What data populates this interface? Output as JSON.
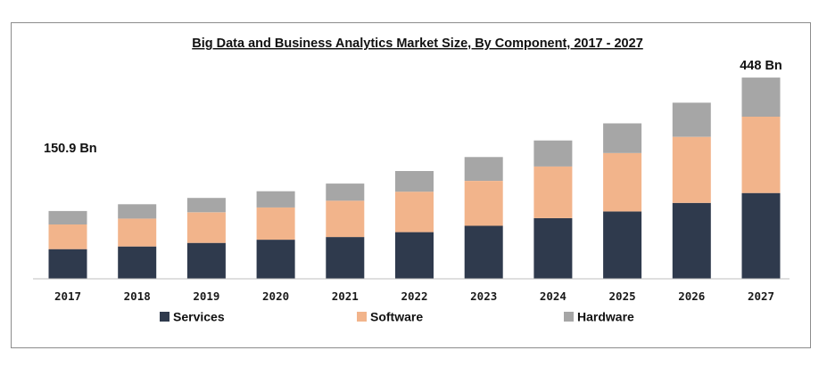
{
  "chart_data": {
    "type": "bar",
    "stacked": true,
    "title": "Big Data and Business Analytics Market Size, By Component, 2017 - 2027",
    "categories": [
      "2017",
      "2018",
      "2019",
      "2020",
      "2021",
      "2022",
      "2023",
      "2024",
      "2025",
      "2026",
      "2027"
    ],
    "series": [
      {
        "name": "Services",
        "color": "#2f3a4d",
        "values": [
          66,
          72,
          80,
          87,
          93,
          104,
          118,
          135,
          150,
          169,
          191
        ]
      },
      {
        "name": "Software",
        "color": "#f2b48b",
        "values": [
          55,
          62,
          68,
          72,
          81,
          90,
          100,
          115,
          130,
          147,
          170
        ]
      },
      {
        "name": "Hardware",
        "color": "#a6a6a6",
        "values": [
          30,
          32,
          32,
          36,
          38,
          46,
          53,
          58,
          66,
          76,
          87
        ]
      }
    ],
    "annotations": [
      {
        "category": "2017",
        "text": "150.9 Bn"
      },
      {
        "category": "2027",
        "text": "448 Bn"
      }
    ],
    "ylim": [
      0,
      470
    ],
    "grid": false,
    "legend": "bottom",
    "xlabel": "",
    "ylabel": ""
  }
}
